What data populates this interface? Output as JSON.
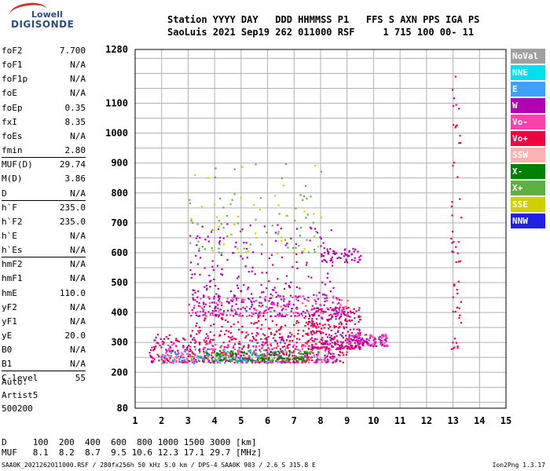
{
  "logo": {
    "line1": "Lowell",
    "line2": "DIGISONDE"
  },
  "header": {
    "line1": "Station YYYY DAY   DDD HHMMSS P1   FFS S AXN PPS IGA PS",
    "line2": "SaoLuis 2021 Sep19 262 011000 RSF     1 715 100 00- 11"
  },
  "params": [
    {
      "k": "foF2",
      "v": "7.700"
    },
    {
      "k": "foF1",
      "v": "N/A"
    },
    {
      "k": "foF1p",
      "v": "N/A"
    },
    {
      "k": "foE",
      "v": "N/A"
    },
    {
      "k": "foEp",
      "v": "0.35"
    },
    {
      "k": "fxI",
      "v": "8.35"
    },
    {
      "k": "foEs",
      "v": "N/A"
    },
    {
      "k": "fmin",
      "v": "2.80"
    },
    {
      "k": "MUF(D)",
      "v": "29.74",
      "sep": true
    },
    {
      "k": "M(D)",
      "v": "3.86"
    },
    {
      "k": "D",
      "v": "N/A"
    },
    {
      "k": "h`F",
      "v": "235.0",
      "sep": true
    },
    {
      "k": "h`F2",
      "v": "235.0"
    },
    {
      "k": "h`E",
      "v": "N/A"
    },
    {
      "k": "h`Es",
      "v": "N/A"
    },
    {
      "k": "hmF2",
      "v": "N/A",
      "sep": true
    },
    {
      "k": "hmF1",
      "v": "N/A"
    },
    {
      "k": "hmE",
      "v": "110.0"
    },
    {
      "k": "yF2",
      "v": "N/A"
    },
    {
      "k": "yF1",
      "v": "N/A"
    },
    {
      "k": "yE",
      "v": "20.0"
    },
    {
      "k": "B0",
      "v": "N/A"
    },
    {
      "k": "B1",
      "v": "N/A"
    },
    {
      "k": "C-level",
      "v": "55",
      "sep": true
    }
  ],
  "auto": {
    "line1": "Auto:",
    "line2": "Artist5",
    "line3": "500200"
  },
  "legend": [
    {
      "label": "NoVal",
      "color": "#a0a0a0"
    },
    {
      "label": "NNE",
      "color": "#00e0f0"
    },
    {
      "label": "E",
      "color": "#40a0ff"
    },
    {
      "label": "W",
      "color": "#b000b0"
    },
    {
      "label": "Vo-",
      "color": "#ff40b0"
    },
    {
      "label": "Vo+",
      "color": "#f00040"
    },
    {
      "label": "SSW",
      "color": "#ffb0b0"
    },
    {
      "label": "X-",
      "color": "#008000"
    },
    {
      "label": "X+",
      "color": "#60b040"
    },
    {
      "label": "SSE",
      "color": "#d0d000"
    },
    {
      "label": "NNW",
      "color": "#2020e0"
    }
  ],
  "bottom": {
    "line1": "D     100  200  400  600  800 1000 1500 3000 [km]",
    "line2": "MUF   8.1  8.2  8.7  9.5 10.6 12.3 17.1 29.7 [MHz]"
  },
  "footer": {
    "left": "SAA0K_2021262011000.RSF / 280fx256h 50 kHz 5.0 km / DPS-4 SAA0K 903 / 2.6 S 315.8 E",
    "right": "Ion2Png 1.3.17"
  },
  "chart_data": {
    "type": "scatter",
    "title": "",
    "xlabel": "",
    "ylabel": "",
    "xlim": [
      1,
      15
    ],
    "ylim": [
      80,
      1280
    ],
    "xticks": [
      "1",
      "2",
      "3",
      "4",
      "5",
      "6",
      "7",
      "8",
      "9",
      "10",
      "11",
      "12",
      "13",
      "14",
      "15"
    ],
    "yticks": [
      {
        "v": 80,
        "label": "80"
      },
      {
        "v": 200,
        "label": "200"
      },
      {
        "v": 300,
        "label": "300"
      },
      {
        "v": 400,
        "label": "400"
      },
      {
        "v": 500,
        "label": "500"
      },
      {
        "v": 600,
        "label": "600"
      },
      {
        "v": 700,
        "label": "700"
      },
      {
        "v": 800,
        "label": "800"
      },
      {
        "v": 900,
        "label": "900"
      },
      {
        "v": 1000,
        "label": "1000"
      },
      {
        "v": 1100,
        "label": "1100"
      },
      {
        "v": 1280,
        "label": "1280"
      }
    ],
    "grid": true,
    "ionogram_clusters": [
      {
        "fmin": 1.5,
        "fmax": 9.0,
        "hmin": 235,
        "hmax": 330,
        "color": "#f00040",
        "n": 260
      },
      {
        "fmin": 1.5,
        "fmax": 9.0,
        "hmin": 235,
        "hmax": 330,
        "color": "#b000b0",
        "n": 260
      },
      {
        "fmin": 2.0,
        "fmax": 8.5,
        "hmin": 235,
        "hmax": 300,
        "color": "#ff40b0",
        "n": 200
      },
      {
        "fmin": 3.5,
        "fmax": 7.5,
        "hmin": 240,
        "hmax": 275,
        "color": "#008000",
        "n": 140
      },
      {
        "fmin": 3.0,
        "fmax": 8.0,
        "hmin": 240,
        "hmax": 280,
        "color": "#60b040",
        "n": 80
      },
      {
        "fmin": 2.0,
        "fmax": 6.0,
        "hmin": 230,
        "hmax": 280,
        "color": "#40a0ff",
        "n": 60
      },
      {
        "fmin": 7.5,
        "fmax": 9.5,
        "hmin": 280,
        "hmax": 420,
        "color": "#f00040",
        "n": 140
      },
      {
        "fmin": 7.5,
        "fmax": 9.5,
        "hmin": 280,
        "hmax": 420,
        "color": "#b000b0",
        "n": 120
      },
      {
        "fmin": 9.0,
        "fmax": 10.5,
        "hmin": 290,
        "hmax": 330,
        "color": "#b000b0",
        "n": 80
      },
      {
        "fmin": 9.0,
        "fmax": 10.5,
        "hmin": 290,
        "hmax": 330,
        "color": "#ff40b0",
        "n": 50
      },
      {
        "fmin": 3.0,
        "fmax": 9.0,
        "hmin": 390,
        "hmax": 460,
        "color": "#b000b0",
        "n": 220
      },
      {
        "fmin": 3.0,
        "fmax": 9.0,
        "hmin": 390,
        "hmax": 460,
        "color": "#ff40b0",
        "n": 120
      },
      {
        "fmin": 3.0,
        "fmax": 8.0,
        "hmin": 330,
        "hmax": 390,
        "color": "#f00040",
        "n": 90
      },
      {
        "fmin": 3.0,
        "fmax": 8.5,
        "hmin": 460,
        "hmax": 700,
        "color": "#b000b0",
        "n": 160
      },
      {
        "fmin": 8.0,
        "fmax": 9.5,
        "hmin": 570,
        "hmax": 620,
        "color": "#b000b0",
        "n": 60
      },
      {
        "fmin": 3.0,
        "fmax": 8.0,
        "hmin": 600,
        "hmax": 900,
        "color": "#60b040",
        "n": 70
      },
      {
        "fmin": 3.0,
        "fmax": 8.0,
        "hmin": 600,
        "hmax": 900,
        "color": "#d0d000",
        "n": 40
      },
      {
        "fmin": 12.9,
        "fmax": 13.3,
        "hmin": 280,
        "hmax": 1270,
        "color": "#f00040",
        "n": 55
      }
    ]
  }
}
